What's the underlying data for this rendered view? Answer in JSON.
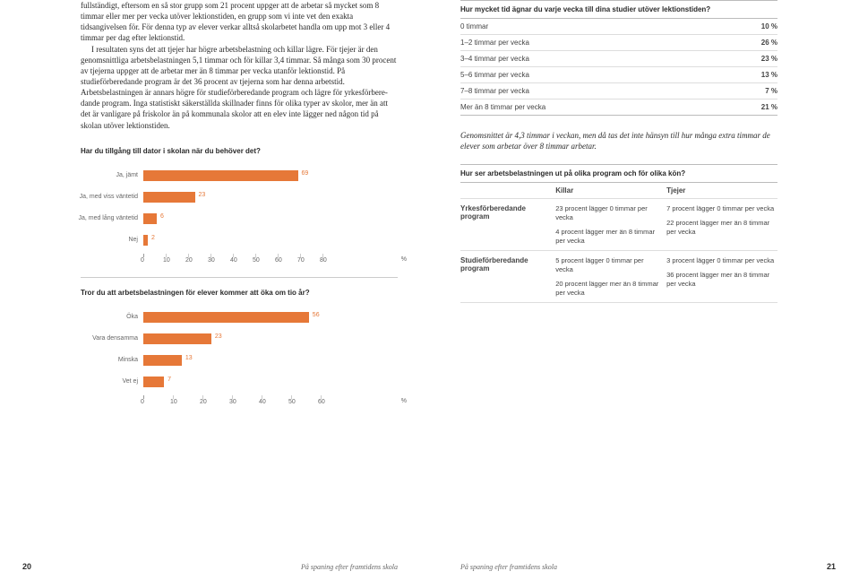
{
  "leftPage": {
    "para1": "fullständigt, eftersom en så stor grupp som 21 procent uppger att de arbetar så mycket som 8 timmar eller mer per vecka utöver lektionstiden, en grupp som vi inte vet den exakta tidsangivelsen för. För denna typ av elever verkar alltså skolarbetet handla om upp mot 3 eller 4 timmar per dag efter lektions­tid.",
    "para2": "I resultaten syns det att tjejer har högre arbetsbelastning och killar lägre. För tjejer är den genomsnittliga arbetsbelastningen 5,1 timmar och för killar 3,4 timmar. Så många som 30 procent av tjejerna uppger att de arbetar mer än 8 timmar per vecka utanför lektionstid. På studieförberedande program är det 36 procent av tjejerna som har denna arbetstid. Arbetsbelastningen är annars högre för studieförberedande program och lägre för yrkesförbere­dande program. Inga statistiskt säkerställda skillnader finns för olika typer av skolor, mer än att det är vanligare på friskolor än på kommunala skolor att en elev inte lägger ned någon tid på skolan utöver lektionstiden.",
    "chart1": {
      "title": "Har du tillgång till dator i skolan när du behöver det?",
      "bars": [
        {
          "label": "Ja, jämt",
          "value": 69
        },
        {
          "label": "Ja, med viss väntetid",
          "value": 23
        },
        {
          "label": "Ja, med lång väntetid",
          "value": 6
        },
        {
          "label": "Nej",
          "value": 2
        }
      ],
      "xmax": 80,
      "xstep": 10,
      "bar_color": "#e67838"
    },
    "chart2": {
      "title": "Tror du att arbetsbelastningen för elever kommer att öka om tio år?",
      "bars": [
        {
          "label": "Öka",
          "value": 56
        },
        {
          "label": "Vara densamma",
          "value": 23
        },
        {
          "label": "Minska",
          "value": 13
        },
        {
          "label": "Vet ej",
          "value": 7
        }
      ],
      "xmax": 60,
      "xstep": 10,
      "bar_color": "#e67838"
    },
    "footer_title": "På spaning efter framtidens skola",
    "page_num": "20"
  },
  "rightPage": {
    "table1": {
      "title": "Hur mycket tid ägnar du varje vecka till dina studier utöver lektionstiden?",
      "rows": [
        {
          "label": "0 timmar",
          "value": "10 %"
        },
        {
          "label": "1–2 timmar per vecka",
          "value": "26 %"
        },
        {
          "label": "3–4 timmar per vecka",
          "value": "23 %"
        },
        {
          "label": "5–6 timmar per vecka",
          "value": "13 %"
        },
        {
          "label": "7–8 timmar per vecka",
          "value": "7 %"
        },
        {
          "label": "Mer än 8 timmar per vecka",
          "value": "21 %"
        }
      ]
    },
    "summary": "Genomsnittet är 4,3 timmar i veckan, men då tas det inte hänsyn till hur många extra timmar de elever som arbetar över 8 timmar arbetar.",
    "table2": {
      "title": "Hur ser arbetsbelastningen ut på olika program och för olika kön?",
      "col_headers": [
        "",
        "Killar",
        "Tjejer"
      ],
      "rows": [
        {
          "rowlabel": "Yrkesförberedande program",
          "col1a": "23 procent lägger 0 timmar per vecka",
          "col1b": "4 procent lägger mer än 8 timmar per vecka",
          "col2a": "7 procent lägger 0 timmar per vecka",
          "col2b": "22 procent lägger mer än 8 timmar per vecka"
        },
        {
          "rowlabel": "Studieförberedande program",
          "col1a": "5 procent lägger 0 timmar per vecka",
          "col1b": "20 procent lägger mer än 8 timmar per vecka",
          "col2a": "3 procent lägger 0 timmar per vecka",
          "col2b": "36 procent lägger mer än 8 timmar per vecka"
        }
      ]
    },
    "footer_title": "På spaning efter framtidens skola",
    "page_num": "21"
  }
}
